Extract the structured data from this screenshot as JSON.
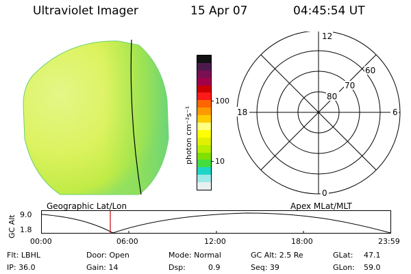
{
  "header": {
    "title": "Ultraviolet Imager",
    "date": "15 Apr 07",
    "time": "04:45:54 UT"
  },
  "colorbar": {
    "unit": "photon cm⁻²s⁻¹",
    "ticks": [
      "100",
      "10"
    ],
    "colors": [
      "#121212",
      "#4d1a4d",
      "#7a0f52",
      "#a3004a",
      "#cc0000",
      "#ff1a1a",
      "#ff6600",
      "#ff9900",
      "#ffcc00",
      "#ffff80",
      "#ffff00",
      "#e0f000",
      "#b8ec00",
      "#80e000",
      "#44dd40",
      "#1ed5c8",
      "#9ee8e8",
      "#e8f0f0"
    ]
  },
  "polar": {
    "lat_labels": [
      "80",
      "70",
      "60"
    ],
    "mlt_labels": [
      "12",
      "18",
      "6",
      "0"
    ]
  },
  "timeline": {
    "left_title": "Geographic Lat/Lon",
    "right_title": "Apex MLat/MLT",
    "y_axis_label": "GC Alt",
    "y_ticks": [
      "9.0",
      "1.8"
    ],
    "x_ticks": [
      "00:00",
      "06:00",
      "12:00",
      "18:00",
      "23:59"
    ],
    "marker_color": "#cc0000"
  },
  "info": {
    "flt": "Flt: LBHL",
    "ip": "IP: 36.0",
    "door": "Door: Open",
    "gain": "Gain: 14",
    "mode": "Mode: Normal",
    "dsp_label": "Dsp:",
    "dsp_value": "0.9",
    "gc_alt": "GC Alt: 2.5 Re",
    "seq": "Seq: 39",
    "glat_label": "GLat:",
    "glat_value": "47.1",
    "glon_label": "GLon:",
    "glon_value": "59.0"
  }
}
